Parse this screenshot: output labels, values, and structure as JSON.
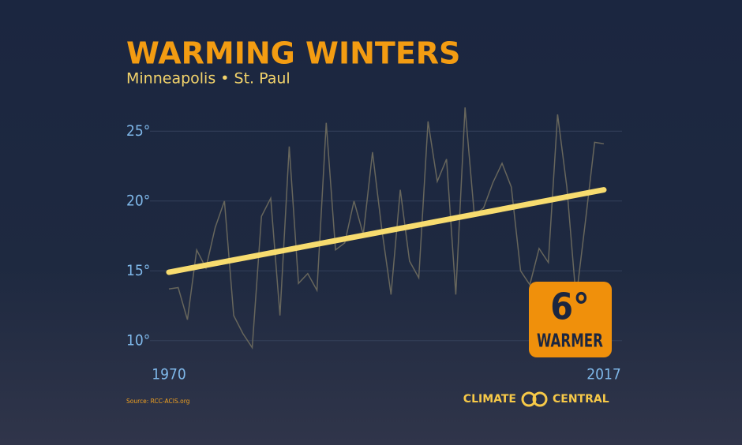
{
  "chart_data": {
    "type": "line",
    "title": "WARMING WINTERS",
    "subtitle": "Minneapolis • St. Paul",
    "source": "Source: RCC-ACIS.org",
    "x": [
      1970,
      1971,
      1972,
      1973,
      1974,
      1975,
      1976,
      1977,
      1978,
      1979,
      1980,
      1981,
      1982,
      1983,
      1984,
      1985,
      1986,
      1987,
      1988,
      1989,
      1990,
      1991,
      1992,
      1993,
      1994,
      1995,
      1996,
      1997,
      1998,
      1999,
      2000,
      2001,
      2002,
      2003,
      2004,
      2005,
      2006,
      2007,
      2008,
      2009,
      2010,
      2011,
      2012,
      2013,
      2014,
      2015,
      2016,
      2017
    ],
    "series": [
      {
        "color": "#67665c",
        "values": [
          13.7,
          13.8,
          11.5,
          16.5,
          15.2,
          18.1,
          20.0,
          11.8,
          10.5,
          9.5,
          18.9,
          20.2,
          11.8,
          23.9,
          14.1,
          14.8,
          13.6,
          25.6,
          16.5,
          17.0,
          20.0,
          17.6,
          23.5,
          18.0,
          13.3,
          20.8,
          15.7,
          14.5,
          25.7,
          21.4,
          23.0,
          13.3,
          26.7,
          19.0,
          19.5,
          21.3,
          22.7,
          21.0,
          15.0,
          14.0,
          16.6,
          15.6,
          26.2,
          21.0,
          13.0,
          18.5,
          24.2,
          24.1
        ]
      }
    ],
    "trend": {
      "color": "#f7dc6f",
      "x": [
        1970,
        2017
      ],
      "values": [
        14.9,
        20.8
      ]
    },
    "xlim": [
      1970,
      2017
    ],
    "xticks": [
      1970,
      2017
    ],
    "ylim": [
      7.5,
      27.5
    ],
    "yticks": [
      {
        "value": 10,
        "label": "10°"
      },
      {
        "value": 15,
        "label": "15°"
      },
      {
        "value": 20,
        "label": "20°"
      },
      {
        "value": 25,
        "label": "25°"
      }
    ],
    "grid": true,
    "badge": {
      "big": "6°",
      "small": "WARMER"
    }
  },
  "branding": {
    "left": "CLIMATE",
    "right": "CENTRAL"
  }
}
